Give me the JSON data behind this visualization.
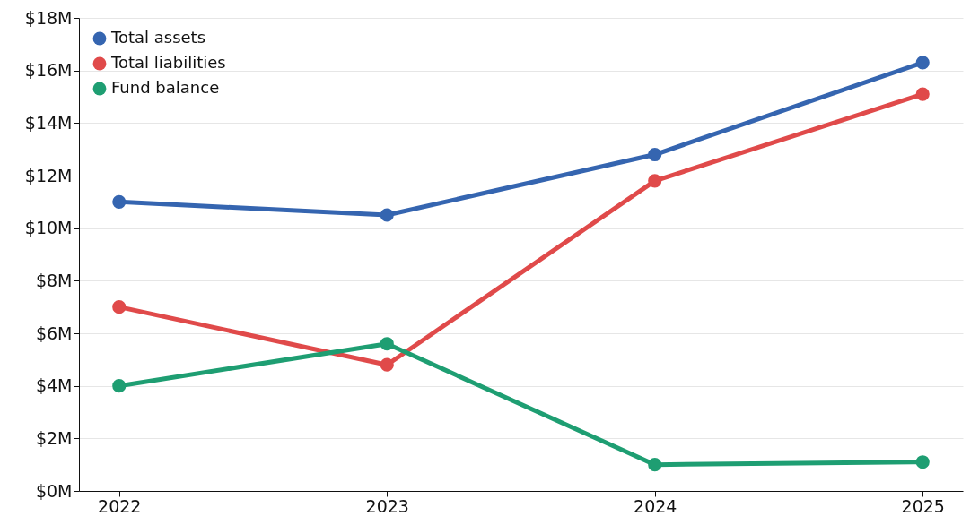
{
  "chart_data": {
    "type": "line",
    "categories": [
      "2022",
      "2023",
      "2024",
      "2025"
    ],
    "series": [
      {
        "name": "Total assets",
        "color": "#3565b0",
        "values": [
          11.0,
          10.5,
          12.8,
          16.3
        ]
      },
      {
        "name": "Total liabilities",
        "color": "#e04a4a",
        "values": [
          7.0,
          4.8,
          11.8,
          15.1
        ]
      },
      {
        "name": "Fund balance",
        "color": "#1e9e72",
        "values": [
          4.0,
          5.6,
          1.0,
          1.1
        ]
      }
    ],
    "ylim": [
      0,
      18
    ],
    "yticks": [
      {
        "value": 0,
        "label": "$0M"
      },
      {
        "value": 2,
        "label": "$2M"
      },
      {
        "value": 4,
        "label": "$4M"
      },
      {
        "value": 6,
        "label": "$6M"
      },
      {
        "value": 8,
        "label": "$8M"
      },
      {
        "value": 10,
        "label": "$10M"
      },
      {
        "value": 12,
        "label": "$12M"
      },
      {
        "value": 14,
        "label": "$14M"
      },
      {
        "value": 16,
        "label": "$16M"
      },
      {
        "value": 18,
        "label": "$18M"
      }
    ],
    "grid": "y",
    "legend": "top left",
    "marker": "circle",
    "line_style": "solid"
  }
}
